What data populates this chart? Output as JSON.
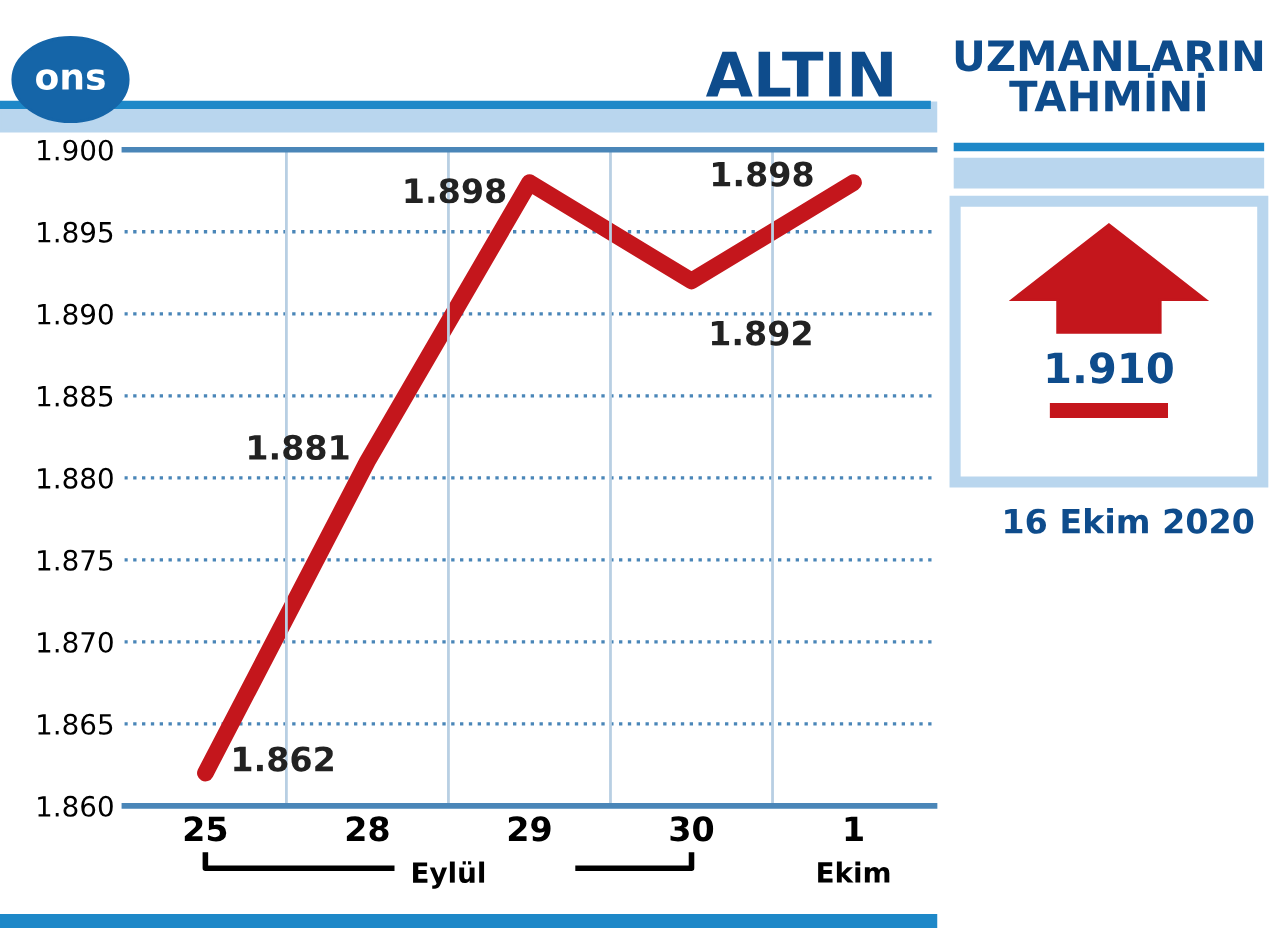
{
  "chart_data": {
    "type": "line",
    "title": "ALTIN",
    "categories": [
      "25",
      "28",
      "29",
      "30",
      "1"
    ],
    "series": [
      {
        "color": "#c4161c",
        "values": [
          1862,
          1881,
          1898,
          1892,
          1898
        ],
        "value_labels": [
          "1.862",
          "1.881",
          "1.898",
          "1.892",
          "1.898"
        ]
      }
    ],
    "ylim": [
      1860,
      1900
    ],
    "yticks": [
      {
        "value": 1860,
        "label": "1.860"
      },
      {
        "value": 1865,
        "label": "1.865"
      },
      {
        "value": 1870,
        "label": "1.870"
      },
      {
        "value": 1875,
        "label": "1.875"
      },
      {
        "value": 1880,
        "label": "1.880"
      },
      {
        "value": 1885,
        "label": "1.885"
      },
      {
        "value": 1890,
        "label": "1.890"
      },
      {
        "value": 1895,
        "label": "1.895"
      },
      {
        "value": 1900,
        "label": "1.900"
      }
    ],
    "grid": true,
    "marker": "none",
    "line_style": "solid",
    "legend": false,
    "annotations": [
      "ons",
      "Eylül",
      "Ekim",
      "UZMANLARIN TAHMİNİ",
      "1.910",
      "16 Ekim 2020"
    ]
  }
}
